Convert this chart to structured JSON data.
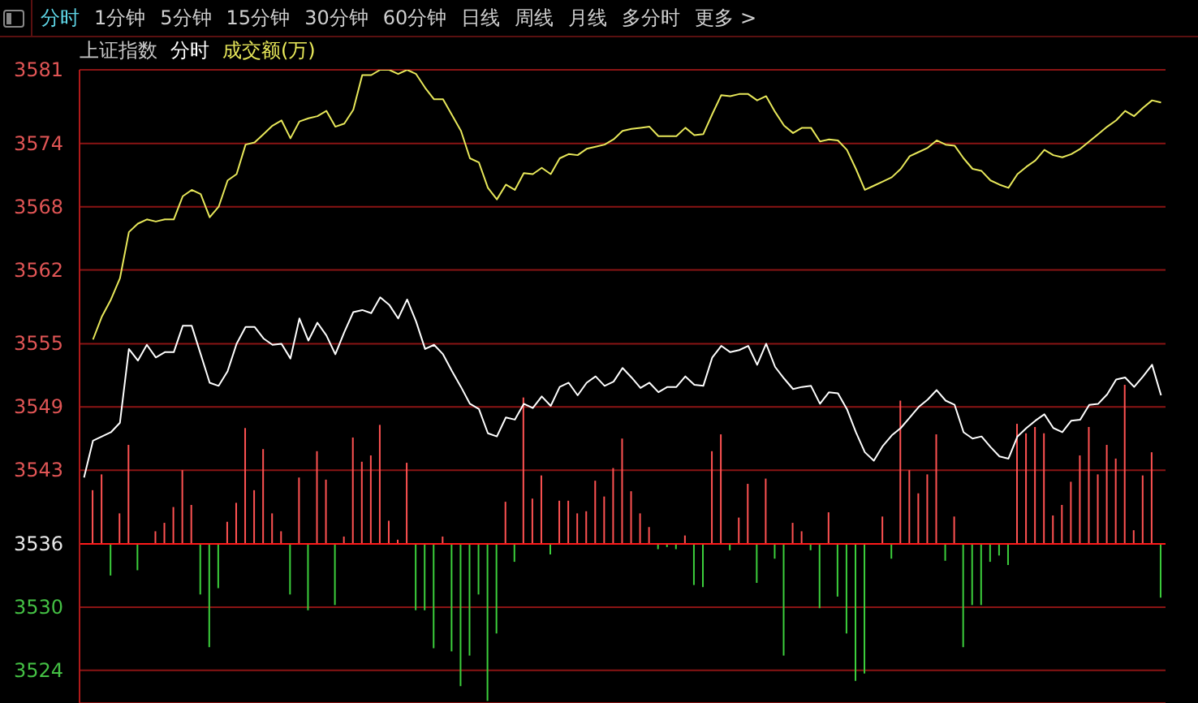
{
  "chart_data": {
    "type": "line",
    "title": "上证指数",
    "annotations": [
      "分时",
      "1分钟",
      "5分钟",
      "15分钟",
      "30分钟",
      "60分钟",
      "日线",
      "周线",
      "月线",
      "多分时",
      "更多 >"
    ],
    "categories": [
      null,
      null,
      null,
      null,
      null,
      null,
      null,
      null,
      null,
      null,
      null,
      null,
      null,
      null,
      null,
      null,
      null,
      null,
      null,
      null,
      null,
      null,
      null,
      null,
      null,
      null,
      null,
      null,
      null,
      null,
      null,
      null,
      null,
      null,
      null,
      null,
      null,
      null,
      null,
      null,
      null,
      null,
      null,
      null,
      null,
      null,
      null,
      null,
      null,
      null,
      null,
      null,
      null,
      null,
      null,
      null,
      null,
      null,
      null,
      null,
      null,
      null,
      null,
      null,
      null,
      null,
      null,
      null,
      null,
      null,
      null,
      null,
      null,
      null,
      null,
      null,
      null,
      null,
      null,
      null,
      null,
      null,
      null,
      null,
      null,
      null,
      null,
      null,
      null,
      null,
      null,
      null,
      null,
      null,
      null,
      null,
      null,
      null,
      null,
      null,
      null,
      null,
      null,
      null,
      null,
      null,
      null,
      null,
      null,
      null,
      null,
      null,
      null,
      null,
      null,
      null,
      null,
      null,
      null,
      null,
      null
    ],
    "series": [
      {
        "type": "bar",
        "base": [
          null,
          3536,
          3536,
          3536,
          3536,
          3536,
          3536,
          null,
          3536,
          3536,
          3536,
          3536,
          3536,
          3536,
          3536,
          3536,
          3536,
          3536,
          3536,
          3536,
          3536,
          3536,
          3536,
          3536,
          3536,
          3536,
          3536,
          3536,
          3536,
          3536,
          3536,
          3536,
          3536,
          3536,
          3536,
          3536,
          3536,
          3536,
          3536,
          3536,
          3536,
          3536,
          3536,
          3536,
          3536,
          3536,
          3536,
          3536,
          3536,
          3536,
          3536,
          3536,
          3536,
          3536,
          3536,
          3536,
          3536,
          3536,
          3536,
          3536,
          3536,
          3536,
          3536,
          3536,
          3536,
          3536,
          3536,
          3536,
          3536,
          3536,
          3536,
          3536,
          3536,
          3536,
          3536,
          3536,
          3536,
          3536,
          3536,
          3536,
          3536,
          3536,
          3536,
          3536,
          3536,
          3536,
          3536,
          3536,
          null,
          3536,
          3536,
          3536,
          3536,
          3536,
          3536,
          3536,
          3536,
          3536,
          3536,
          3536,
          3536,
          3536,
          3536,
          3536,
          3536,
          3536,
          3536,
          3536,
          3536,
          3536,
          3536,
          3536,
          3536,
          3536,
          3536,
          3536,
          3536,
          3536,
          3536,
          3536,
          3536
        ],
        "values": [
          null,
          5.1,
          6.6,
          -3.0,
          2.9,
          9.4,
          -2.5,
          null,
          1.2,
          2.0,
          3.5,
          7.0,
          3.7,
          -4.8,
          -9.8,
          -4.2,
          2.1,
          3.9,
          11.0,
          5.1,
          9.0,
          2.9,
          1.2,
          -4.8,
          6.3,
          -6.3,
          8.8,
          6.1,
          -5.8,
          0.7,
          10.1,
          7.8,
          8.4,
          11.3,
          2.2,
          0.4,
          7.7,
          -6.3,
          -6.3,
          -9.9,
          0.7,
          -10.2,
          -13.5,
          -10.6,
          -4.8,
          -14.9,
          -8.5,
          4.0,
          -1.7,
          13.9,
          4.3,
          6.5,
          -1.0,
          4.1,
          4.1,
          2.9,
          3.1,
          6.0,
          4.5,
          7.2,
          10.0,
          5.0,
          2.9,
          1.6,
          -0.5,
          -0.3,
          -0.5,
          0.8,
          -3.9,
          -4.1,
          8.8,
          10.4,
          -0.6,
          2.5,
          5.7,
          -3.7,
          6.2,
          -1.4,
          -10.6,
          2.0,
          1.2,
          -0.6,
          -6.1,
          3.0,
          -5.0,
          -8.5,
          -13.0,
          -12.3,
          null,
          2.6,
          -1.4,
          13.6,
          7.0,
          4.8,
          6.6,
          10.4,
          -1.6,
          2.6,
          -9.8,
          -5.8,
          -5.8,
          -1.7,
          -1.1,
          -2.0,
          11.4,
          10.5,
          11.1,
          10.5,
          2.7,
          3.7,
          5.9,
          8.4,
          11.1,
          6.6,
          9.4,
          8.1,
          15.1,
          1.3,
          6.5,
          8.7,
          -5.1
        ],
        "colors": [
          null,
          "#ff5252",
          "#ff5252",
          "#3ccf3c",
          "#ff5252",
          "#ff5252",
          "#3ccf3c",
          null,
          "#ff5252",
          "#ff5252",
          "#ff5252",
          "#ff5252",
          "#ff5252",
          "#3ccf3c",
          "#3ccf3c",
          "#3ccf3c",
          "#ff5252",
          "#ff5252",
          "#ff5252",
          "#ff5252",
          "#ff5252",
          "#ff5252",
          "#ff5252",
          "#3ccf3c",
          "#ff5252",
          "#3ccf3c",
          "#ff5252",
          "#ff5252",
          "#3ccf3c",
          "#ff5252",
          "#ff5252",
          "#ff5252",
          "#ff5252",
          "#ff5252",
          "#ff5252",
          "#ff5252",
          "#ff5252",
          "#3ccf3c",
          "#3ccf3c",
          "#3ccf3c",
          "#ff5252",
          "#3ccf3c",
          "#3ccf3c",
          "#3ccf3c",
          "#3ccf3c",
          "#3ccf3c",
          "#3ccf3c",
          "#ff5252",
          "#3ccf3c",
          "#ff5252",
          "#ff5252",
          "#ff5252",
          "#3ccf3c",
          "#ff5252",
          "#ff5252",
          "#ff5252",
          "#ff5252",
          "#ff5252",
          "#ff5252",
          "#ff5252",
          "#ff5252",
          "#ff5252",
          "#ff5252",
          "#ff5252",
          "#3ccf3c",
          "#3ccf3c",
          "#3ccf3c",
          "#ff5252",
          "#3ccf3c",
          "#3ccf3c",
          "#ff5252",
          "#ff5252",
          "#3ccf3c",
          "#ff5252",
          "#ff5252",
          "#3ccf3c",
          "#ff5252",
          "#3ccf3c",
          "#3ccf3c",
          "#ff5252",
          "#ff5252",
          "#3ccf3c",
          "#3ccf3c",
          "#ff5252",
          "#3ccf3c",
          "#3ccf3c",
          "#3ccf3c",
          "#3ccf3c",
          null,
          "#ff5252",
          "#3ccf3c",
          "#ff5252",
          "#ff5252",
          "#ff5252",
          "#ff5252",
          "#ff5252",
          "#3ccf3c",
          "#ff5252",
          "#3ccf3c",
          "#3ccf3c",
          "#3ccf3c",
          "#3ccf3c",
          "#3ccf3c",
          "#3ccf3c",
          "#ff5252",
          "#ff5252",
          "#ff5252",
          "#ff5252",
          "#ff5252",
          "#ff5252",
          "#ff5252",
          "#ff5252",
          "#ff5252",
          "#ff5252",
          "#ff5252",
          "#ff5252",
          "#ff5252",
          "#ff5252",
          "#ff5252",
          "#ff5252",
          "#3ccf3c"
        ]
      },
      {
        "name": "分时",
        "color": "#ffffff",
        "values": [
          3542.3,
          3545.8,
          3546.2,
          3546.6,
          3547.5,
          3554.5,
          3553.4,
          3554.9,
          3553.7,
          3554.2,
          3554.2,
          3556.7,
          3556.7,
          3554.0,
          3551.3,
          3551.0,
          3552.4,
          3555.0,
          3556.6,
          3556.6,
          3555.5,
          3554.9,
          3555.0,
          3553.6,
          3557.4,
          3555.3,
          3557.0,
          3555.8,
          3554.0,
          3556.1,
          3558.0,
          3558.2,
          3557.9,
          3559.4,
          3558.7,
          3557.4,
          3559.2,
          3557.1,
          3554.5,
          3554.9,
          3554.0,
          3552.4,
          3550.9,
          3549.3,
          3548.8,
          3546.5,
          3546.2,
          3548.0,
          3547.8,
          3549.3,
          3548.9,
          3550.0,
          3549.1,
          3550.9,
          3551.3,
          3550.1,
          3551.3,
          3551.9,
          3551.0,
          3551.4,
          3552.7,
          3551.8,
          3550.8,
          3551.3,
          3550.4,
          3550.9,
          3550.9,
          3551.9,
          3551.1,
          3551.0,
          3553.7,
          3554.8,
          3554.2,
          3554.4,
          3554.8,
          3553.0,
          3555.0,
          3552.8,
          3551.7,
          3550.7,
          3550.9,
          3551.0,
          3549.3,
          3550.4,
          3550.3,
          3548.8,
          3546.6,
          3544.7,
          3543.9,
          3545.3,
          3546.3,
          3547.0,
          3548.0,
          3549.0,
          3549.7,
          3550.6,
          3549.6,
          3549.2,
          3546.6,
          3546.0,
          3546.2,
          3545.2,
          3544.3,
          3544.1,
          3546.2,
          3547.0,
          3547.7,
          3548.3,
          3547.0,
          3546.6,
          3547.7,
          3547.8,
          3549.2,
          3549.3,
          3550.2,
          3551.6,
          3551.8,
          3550.9,
          3551.9,
          3553.0,
          3550.1
        ]
      },
      {
        "name": "成交额(万)",
        "color": "#e8e85a",
        "values": [
          null,
          3555.4,
          3557.6,
          3559.2,
          3561.2,
          3565.6,
          3566.4,
          3566.8,
          3566.6,
          3566.8,
          3566.8,
          3569.0,
          3569.6,
          3569.2,
          3567.0,
          3568.0,
          3570.5,
          3571.1,
          3573.9,
          3574.1,
          3574.9,
          3575.7,
          3576.2,
          3574.5,
          3576.1,
          3576.4,
          3576.6,
          3577.1,
          3575.6,
          3575.9,
          3577.2,
          3580.5,
          3580.5,
          3581.0,
          3581.0,
          3580.6,
          3581.0,
          3580.6,
          3579.3,
          3578.2,
          3578.2,
          3576.7,
          3575.2,
          3572.6,
          3572.2,
          3569.8,
          3568.7,
          3570.1,
          3569.6,
          3571.2,
          3571.1,
          3571.7,
          3571.1,
          3572.6,
          3573.0,
          3572.9,
          3573.5,
          3573.7,
          3573.9,
          3574.4,
          3575.2,
          3575.4,
          3575.5,
          3575.6,
          3574.7,
          3574.7,
          3574.7,
          3575.5,
          3574.8,
          3574.9,
          3576.8,
          3578.6,
          3578.5,
          3578.7,
          3578.7,
          3578.1,
          3578.5,
          3577.0,
          3575.7,
          3575.0,
          3575.5,
          3575.5,
          3574.2,
          3574.4,
          3574.3,
          3573.4,
          3571.6,
          3569.6,
          3570.0,
          3570.4,
          3570.8,
          3571.6,
          3572.8,
          3573.2,
          3573.6,
          3574.3,
          3573.9,
          3573.8,
          3572.6,
          3571.6,
          3571.4,
          3570.5,
          3570.1,
          3569.8,
          3571.1,
          3571.8,
          3572.4,
          3573.4,
          3572.9,
          3572.7,
          3573.0,
          3573.5,
          3574.2,
          3574.9,
          3575.6,
          3576.2,
          3577.1,
          3576.6,
          3577.4,
          3578.1,
          3577.9
        ]
      }
    ],
    "ylim": [
      3520.9,
      3581
    ],
    "yticks": [
      3524,
      3530,
      3536,
      3543,
      3549,
      3555,
      3562,
      3568,
      3574,
      3581
    ],
    "ref_lines": [
      {
        "axis": "y",
        "value": 3536,
        "color": "#ff1a1a"
      }
    ],
    "grid": "y",
    "legend": "top left",
    "marker": "none",
    "line_style": "solid",
    "tick_labels": "y"
  }
}
